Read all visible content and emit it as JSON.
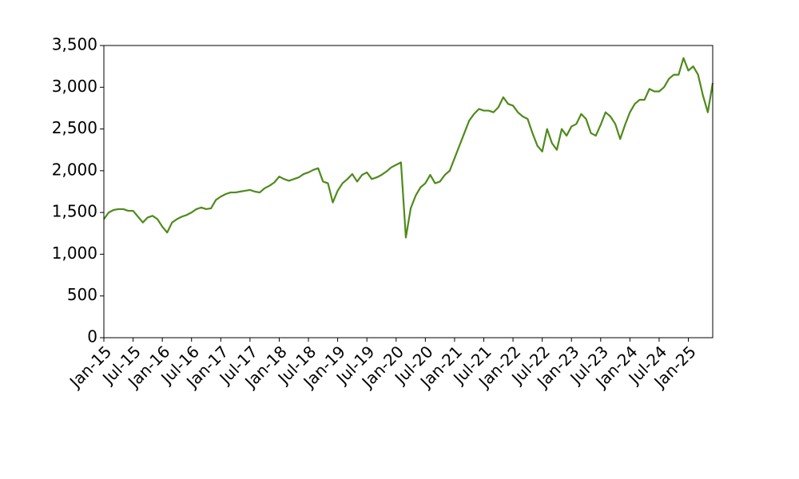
{
  "chart_data": {
    "type": "line",
    "color": "#4f8a1b",
    "grid": false,
    "x": [
      "2015-01",
      "2015-02",
      "2015-03",
      "2015-04",
      "2015-05",
      "2015-06",
      "2015-07",
      "2015-08",
      "2015-09",
      "2015-10",
      "2015-11",
      "2015-12",
      "2016-01",
      "2016-02",
      "2016-03",
      "2016-04",
      "2016-05",
      "2016-06",
      "2016-07",
      "2016-08",
      "2016-09",
      "2016-10",
      "2016-11",
      "2016-12",
      "2017-01",
      "2017-02",
      "2017-03",
      "2017-04",
      "2017-05",
      "2017-06",
      "2017-07",
      "2017-08",
      "2017-09",
      "2017-10",
      "2017-11",
      "2017-12",
      "2018-01",
      "2018-02",
      "2018-03",
      "2018-04",
      "2018-05",
      "2018-06",
      "2018-07",
      "2018-08",
      "2018-09",
      "2018-10",
      "2018-11",
      "2018-12",
      "2019-01",
      "2019-02",
      "2019-03",
      "2019-04",
      "2019-05",
      "2019-06",
      "2019-07",
      "2019-08",
      "2019-09",
      "2019-10",
      "2019-11",
      "2019-12",
      "2020-01",
      "2020-02",
      "2020-03",
      "2020-04",
      "2020-05",
      "2020-06",
      "2020-07",
      "2020-08",
      "2020-09",
      "2020-10",
      "2020-11",
      "2020-12",
      "2021-01",
      "2021-02",
      "2021-03",
      "2021-04",
      "2021-05",
      "2021-06",
      "2021-07",
      "2021-08",
      "2021-09",
      "2021-10",
      "2021-11",
      "2021-12",
      "2022-01",
      "2022-02",
      "2022-03",
      "2022-04",
      "2022-05",
      "2022-06",
      "2022-07",
      "2022-08",
      "2022-09",
      "2022-10",
      "2022-11",
      "2022-12",
      "2023-01",
      "2023-02",
      "2023-03",
      "2023-04",
      "2023-05",
      "2023-06",
      "2023-07",
      "2023-08",
      "2023-09",
      "2023-10",
      "2023-11",
      "2023-12",
      "2024-01",
      "2024-02",
      "2024-03",
      "2024-04",
      "2024-05",
      "2024-06",
      "2024-07",
      "2024-08",
      "2024-09",
      "2024-10",
      "2024-11",
      "2024-12",
      "2025-01",
      "2025-02",
      "2025-03",
      "2025-04",
      "2025-05",
      "2025-06"
    ],
    "values": [
      1420,
      1500,
      1530,
      1540,
      1540,
      1520,
      1520,
      1450,
      1380,
      1440,
      1460,
      1420,
      1330,
      1260,
      1380,
      1420,
      1450,
      1470,
      1500,
      1540,
      1560,
      1540,
      1550,
      1650,
      1690,
      1720,
      1740,
      1740,
      1750,
      1760,
      1770,
      1750,
      1740,
      1790,
      1820,
      1860,
      1930,
      1900,
      1880,
      1900,
      1920,
      1960,
      1980,
      2010,
      2030,
      1870,
      1850,
      1620,
      1760,
      1850,
      1900,
      1960,
      1870,
      1950,
      1980,
      1900,
      1920,
      1950,
      1990,
      2040,
      2070,
      2100,
      1200,
      1550,
      1700,
      1800,
      1850,
      1950,
      1850,
      1870,
      1950,
      2000,
      2150,
      2300,
      2450,
      2600,
      2680,
      2740,
      2720,
      2720,
      2700,
      2760,
      2880,
      2800,
      2780,
      2700,
      2650,
      2620,
      2450,
      2300,
      2230,
      2500,
      2330,
      2250,
      2500,
      2420,
      2530,
      2560,
      2680,
      2620,
      2450,
      2420,
      2550,
      2700,
      2650,
      2560,
      2380,
      2550,
      2700,
      2800,
      2850,
      2850,
      2980,
      2950,
      2950,
      3000,
      3100,
      3150,
      3150,
      3350,
      3200,
      3250,
      3150,
      2900,
      2700,
      3050
    ],
    "xlim": [
      "2015-01",
      "2025-06"
    ],
    "xticks": [
      {
        "value": "2015-01",
        "label": "Jan-15"
      },
      {
        "value": "2015-07",
        "label": "Jul-15"
      },
      {
        "value": "2016-01",
        "label": "Jan-16"
      },
      {
        "value": "2016-07",
        "label": "Jul-16"
      },
      {
        "value": "2017-01",
        "label": "Jan-17"
      },
      {
        "value": "2017-07",
        "label": "Jul-17"
      },
      {
        "value": "2018-01",
        "label": "Jan-18"
      },
      {
        "value": "2018-07",
        "label": "Jul-18"
      },
      {
        "value": "2019-01",
        "label": "Jan-19"
      },
      {
        "value": "2019-07",
        "label": "Jul-19"
      },
      {
        "value": "2020-01",
        "label": "Jan-20"
      },
      {
        "value": "2020-07",
        "label": "Jul-20"
      },
      {
        "value": "2021-01",
        "label": "Jan-21"
      },
      {
        "value": "2021-07",
        "label": "Jul-21"
      },
      {
        "value": "2022-01",
        "label": "Jan-22"
      },
      {
        "value": "2022-07",
        "label": "Jul-22"
      },
      {
        "value": "2023-01",
        "label": "Jan-23"
      },
      {
        "value": "2023-07",
        "label": "Jul-23"
      },
      {
        "value": "2024-01",
        "label": "Jan-24"
      },
      {
        "value": "2024-07",
        "label": "Jul-24"
      },
      {
        "value": "2025-01",
        "label": "Jan-25"
      }
    ],
    "ylim": [
      0,
      3500
    ],
    "yticks": [
      0,
      500,
      {
        "value": 1000,
        "label": "1,000"
      },
      {
        "value": 1500,
        "label": "1,500"
      },
      {
        "value": 2000,
        "label": "2,000"
      },
      {
        "value": 2500,
        "label": "2,500"
      },
      {
        "value": 3000,
        "label": "3,000"
      },
      {
        "value": 3500,
        "label": "3,500"
      }
    ]
  }
}
